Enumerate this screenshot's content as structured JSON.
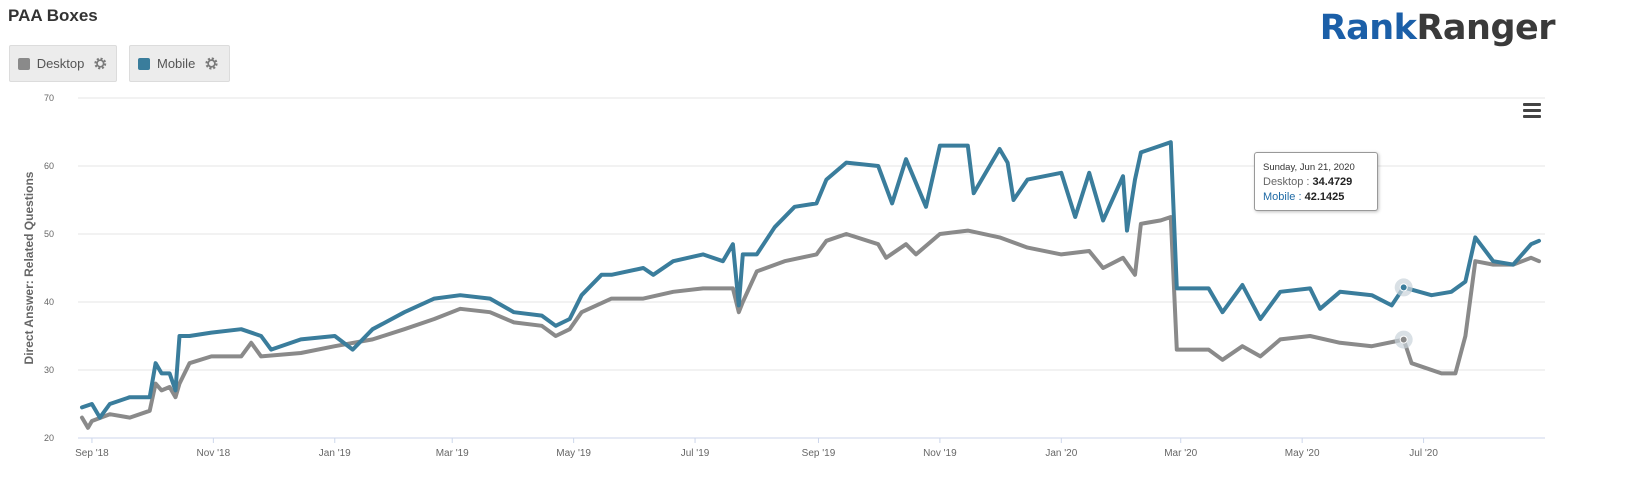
{
  "title": "PAA Boxes",
  "logo": {
    "part1": "Rank",
    "part2": "Ranger"
  },
  "legend": [
    {
      "label": "Desktop",
      "color": "#8a8a8a"
    },
    {
      "label": "Mobile",
      "color": "#3a7d9c"
    }
  ],
  "tooltip": {
    "date": "Sunday, Jun 21, 2020",
    "desktop_label": "Desktop",
    "desktop_value": "34.4729",
    "mobile_label": "Mobile",
    "mobile_value": "42.1425"
  },
  "icons": {
    "menu": "hamburger-menu-icon",
    "settings": "gear-icon"
  },
  "chart_data": {
    "type": "line",
    "ylabel": "Direct Answer: Related Questions",
    "ylim": [
      20,
      70
    ],
    "yticks": [
      20,
      30,
      40,
      50,
      60,
      70
    ],
    "xticks": [
      "Sep '18",
      "Nov '18",
      "Jan '19",
      "Mar '19",
      "May '19",
      "Jul '19",
      "Sep '19",
      "Nov '19",
      "Jan '20",
      "Mar '20",
      "May '20",
      "Jul '20"
    ],
    "xlim": [
      "2018-08-25",
      "2020-08-31"
    ],
    "grid": true,
    "legend_position": "top-left",
    "series": [
      {
        "name": "Desktop",
        "color": "#8a8a8a",
        "points": [
          [
            "2018-08-27",
            23
          ],
          [
            "2018-09-01",
            22.5
          ],
          [
            "2018-09-10",
            23.5
          ],
          [
            "2018-09-20",
            23
          ],
          [
            "2018-09-30",
            24
          ],
          [
            "2018-10-03",
            28
          ],
          [
            "2018-10-06",
            27
          ],
          [
            "2018-10-10",
            27.5
          ],
          [
            "2018-10-15",
            28
          ],
          [
            "2018-10-20",
            31
          ],
          [
            "2018-10-31",
            32
          ],
          [
            "2018-11-15",
            32
          ],
          [
            "2018-11-20",
            34
          ],
          [
            "2018-11-25",
            32
          ],
          [
            "2018-12-15",
            32.5
          ],
          [
            "2019-01-01",
            33.5
          ],
          [
            "2019-01-20",
            34.5
          ],
          [
            "2019-02-05",
            36
          ],
          [
            "2019-02-20",
            37.5
          ],
          [
            "2019-03-05",
            39
          ],
          [
            "2019-03-20",
            38.5
          ],
          [
            "2019-04-01",
            37
          ],
          [
            "2019-04-15",
            36.5
          ],
          [
            "2019-04-29",
            36
          ],
          [
            "2019-05-05",
            38.5
          ],
          [
            "2019-05-20",
            40.5
          ],
          [
            "2019-06-05",
            40.5
          ],
          [
            "2019-06-20",
            41.5
          ],
          [
            "2019-07-05",
            42
          ],
          [
            "2019-07-20",
            42
          ],
          [
            "2019-07-25",
            40
          ],
          [
            "2019-08-01",
            44.5
          ],
          [
            "2019-08-15",
            46
          ],
          [
            "2019-08-31",
            47
          ],
          [
            "2019-09-05",
            49
          ],
          [
            "2019-09-15",
            50
          ],
          [
            "2019-10-01",
            48.5
          ],
          [
            "2019-10-15",
            48.5
          ],
          [
            "2019-11-01",
            50
          ],
          [
            "2019-11-15",
            50.5
          ],
          [
            "2019-12-01",
            49.5
          ],
          [
            "2019-12-15",
            48
          ],
          [
            "2020-01-01",
            47
          ],
          [
            "2020-01-15",
            47.5
          ],
          [
            "2020-02-01",
            46.5
          ],
          [
            "2020-02-07",
            44
          ],
          [
            "2020-02-10",
            51.5
          ],
          [
            "2020-02-20",
            52
          ],
          [
            "2020-02-25",
            52.5
          ],
          [
            "2020-02-28",
            33
          ],
          [
            "2020-03-15",
            33
          ],
          [
            "2020-04-01",
            33.5
          ],
          [
            "2020-04-20",
            34.5
          ],
          [
            "2020-05-05",
            35
          ],
          [
            "2020-05-20",
            34
          ],
          [
            "2020-06-05",
            33.5
          ],
          [
            "2020-06-21",
            34.4729
          ],
          [
            "2020-06-25",
            31
          ],
          [
            "2020-07-10",
            29.5
          ],
          [
            "2020-07-17",
            29.5
          ],
          [
            "2020-07-22",
            35
          ],
          [
            "2020-07-27",
            46
          ],
          [
            "2020-08-05",
            45.5
          ],
          [
            "2020-08-15",
            45.5
          ],
          [
            "2020-08-24",
            46.5
          ],
          [
            "2020-08-28",
            46
          ]
        ]
      },
      {
        "name": "Mobile",
        "color": "#3a7d9c",
        "points": [
          [
            "2018-08-27",
            24.5
          ],
          [
            "2018-09-01",
            25
          ],
          [
            "2018-09-10",
            25
          ],
          [
            "2018-09-20",
            26
          ],
          [
            "2018-09-30",
            26
          ],
          [
            "2018-10-03",
            31
          ],
          [
            "2018-10-06",
            29.5
          ],
          [
            "2018-10-10",
            29.5
          ],
          [
            "2018-10-15",
            35
          ],
          [
            "2018-10-20",
            35
          ],
          [
            "2018-10-31",
            35.5
          ],
          [
            "2018-11-15",
            36
          ],
          [
            "2018-11-25",
            35
          ],
          [
            "2018-12-15",
            34.5
          ],
          [
            "2019-01-01",
            35
          ],
          [
            "2019-01-20",
            36
          ],
          [
            "2019-02-05",
            38.5
          ],
          [
            "2019-02-20",
            40.5
          ],
          [
            "2019-03-05",
            41
          ],
          [
            "2019-03-20",
            40.5
          ],
          [
            "2019-04-01",
            38.5
          ],
          [
            "2019-04-15",
            38
          ],
          [
            "2019-04-29",
            37.5
          ],
          [
            "2019-05-05",
            41
          ],
          [
            "2019-05-15",
            44
          ],
          [
            "2019-05-20",
            44
          ],
          [
            "2019-06-05",
            45
          ],
          [
            "2019-06-20",
            46
          ],
          [
            "2019-07-05",
            47
          ],
          [
            "2019-07-15",
            46
          ],
          [
            "2019-07-20",
            48.5
          ],
          [
            "2019-07-25",
            47
          ],
          [
            "2019-08-01",
            47
          ],
          [
            "2019-08-10",
            51
          ],
          [
            "2019-08-20",
            54
          ],
          [
            "2019-08-31",
            54.5
          ],
          [
            "2019-09-05",
            58
          ],
          [
            "2019-09-15",
            60.5
          ],
          [
            "2019-10-01",
            60
          ],
          [
            "2019-10-15",
            61
          ],
          [
            "2019-11-01",
            63
          ],
          [
            "2019-11-15",
            63
          ],
          [
            "2019-12-01",
            62.5
          ],
          [
            "2019-12-05",
            60.5
          ],
          [
            "2019-12-15",
            58
          ],
          [
            "2020-01-01",
            59
          ],
          [
            "2020-01-15",
            59
          ],
          [
            "2020-02-01",
            58.5
          ],
          [
            "2020-02-07",
            58
          ],
          [
            "2020-02-10",
            62
          ],
          [
            "2020-02-20",
            63
          ],
          [
            "2020-02-25",
            63.5
          ],
          [
            "2020-02-28",
            42
          ],
          [
            "2020-03-15",
            42
          ],
          [
            "2020-04-01",
            42.5
          ],
          [
            "2020-04-20",
            41.5
          ],
          [
            "2020-05-05",
            42
          ],
          [
            "2020-05-20",
            41.5
          ],
          [
            "2020-06-05",
            41
          ],
          [
            "2020-06-21",
            42.1425
          ],
          [
            "2020-07-05",
            41
          ],
          [
            "2020-07-15",
            41.5
          ],
          [
            "2020-07-22",
            43
          ],
          [
            "2020-07-27",
            49.5
          ],
          [
            "2020-08-05",
            46
          ],
          [
            "2020-08-15",
            45.5
          ],
          [
            "2020-08-24",
            48.5
          ],
          [
            "2020-08-28",
            49
          ]
        ]
      }
    ],
    "dips": {
      "Desktop": [
        [
          "2018-08-30",
          21.5
        ],
        [
          "2018-10-13",
          26
        ],
        [
          "2019-04-22",
          35
        ],
        [
          "2019-07-23",
          38.5
        ],
        [
          "2019-10-05",
          46.5
        ],
        [
          "2019-10-20",
          47
        ],
        [
          "2020-01-22",
          45
        ],
        [
          "2020-03-22",
          31.5
        ],
        [
          "2020-04-10",
          32
        ]
      ],
      "Mobile": [
        [
          "2018-09-05",
          23
        ],
        [
          "2018-10-13",
          27
        ],
        [
          "2018-11-30",
          33
        ],
        [
          "2019-01-10",
          33
        ],
        [
          "2019-04-22",
          36.5
        ],
        [
          "2019-06-10",
          44
        ],
        [
          "2019-07-23",
          39.5
        ],
        [
          "2019-10-08",
          54.5
        ],
        [
          "2019-10-25",
          54
        ],
        [
          "2019-11-18",
          56
        ],
        [
          "2019-12-08",
          55
        ],
        [
          "2020-01-08",
          52.5
        ],
        [
          "2020-01-22",
          52
        ],
        [
          "2020-02-03",
          50.5
        ],
        [
          "2020-03-22",
          38.5
        ],
        [
          "2020-04-10",
          37.5
        ],
        [
          "2020-05-10",
          39
        ],
        [
          "2020-06-15",
          39.5
        ]
      ]
    },
    "highlight_date": "2020-06-21"
  }
}
